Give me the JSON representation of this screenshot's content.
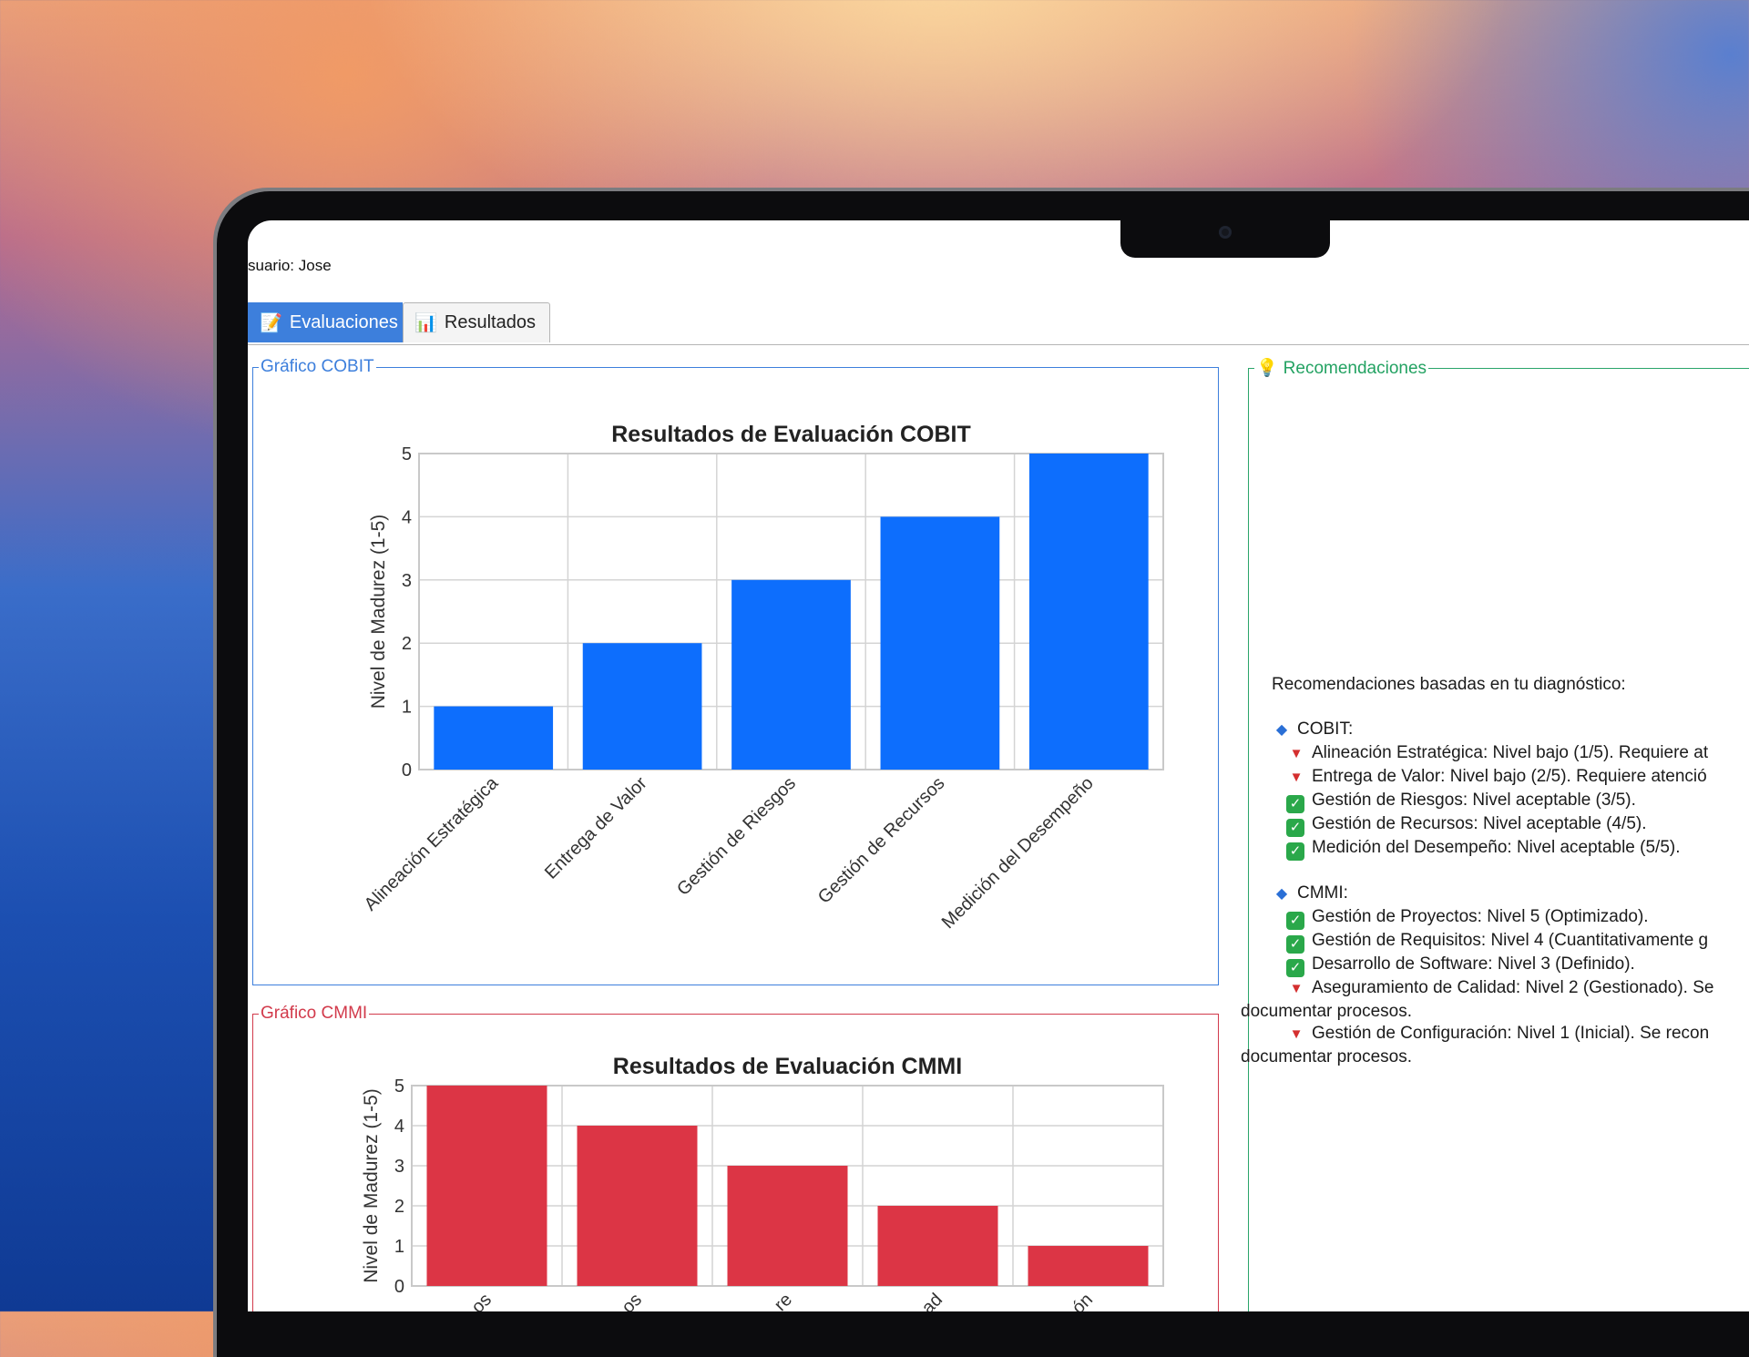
{
  "header": {
    "user_label": "suario: Jose"
  },
  "tabs": [
    {
      "label": "Evaluaciones",
      "icon": "notepad-pencil-icon",
      "active": true
    },
    {
      "label": "Resultados",
      "icon": "bar-chart-icon",
      "active": false
    }
  ],
  "groups": {
    "cobit_title": "Gráfico COBIT",
    "cmmi_title": "Gráfico CMMI",
    "rec_title": "Recomendaciones"
  },
  "colors": {
    "cobit": "#0d6efd",
    "cmmi": "#dc3545",
    "cobit_frame": "#3d7fdc",
    "cmmi_frame": "#d23a4b",
    "rec_frame": "#2aa56a"
  },
  "chart_data": [
    {
      "type": "bar",
      "title": "Resultados de Evaluación COBIT",
      "ylabel": "Nivel de Madurez (1-5)",
      "xlabel": "",
      "categories": [
        "Alineación Estratégica",
        "Entrega de Valor",
        "Gestión de Riesgos",
        "Gestión de Recursos",
        "Medición del Desempeño"
      ],
      "values": [
        1,
        2,
        3,
        4,
        5
      ],
      "ylim": [
        0,
        5
      ],
      "yticks": [
        "0",
        "1",
        "2",
        "3",
        "4",
        "5"
      ],
      "grid": true
    },
    {
      "type": "bar",
      "title": "Resultados de Evaluación CMMI",
      "ylabel": "Nivel de Madurez (1-5)",
      "xlabel": "",
      "categories": [
        "…os",
        "…os",
        "…re",
        "…ad",
        "…ón"
      ],
      "values": [
        5,
        4,
        3,
        2,
        1
      ],
      "ylim": [
        0,
        5
      ],
      "yticks": [
        "0",
        "1",
        "2",
        "3",
        "4",
        "5"
      ],
      "grid": true
    }
  ],
  "recommendations": {
    "intro": "Recomendaciones basadas en tu diagnóstico:",
    "cobit_header": "COBIT:",
    "cobit_items": [
      {
        "status": "down",
        "text": "Alineación Estratégica: Nivel bajo (1/5). Requiere at"
      },
      {
        "status": "down",
        "text": "Entrega de Valor: Nivel bajo (2/5). Requiere atenció"
      },
      {
        "status": "ok",
        "text": "Gestión de Riesgos: Nivel aceptable (3/5)."
      },
      {
        "status": "ok",
        "text": "Gestión de Recursos: Nivel aceptable (4/5)."
      },
      {
        "status": "ok",
        "text": "Medición del Desempeño: Nivel aceptable (5/5)."
      }
    ],
    "cmmi_header": "CMMI:",
    "cmmi_items": [
      {
        "status": "ok",
        "text": "Gestión de Proyectos: Nivel 5 (Optimizado)."
      },
      {
        "status": "ok",
        "text": "Gestión de Requisitos: Nivel 4 (Cuantitativamente g"
      },
      {
        "status": "ok",
        "text": "Desarrollo de Software: Nivel 3 (Definido)."
      },
      {
        "status": "down",
        "text": "Aseguramiento de Calidad: Nivel 2 (Gestionado). Se",
        "continuation": "documentar procesos."
      },
      {
        "status": "down",
        "text": "Gestión de Configuración: Nivel 1 (Inicial). Se recon",
        "continuation": "documentar procesos."
      }
    ]
  }
}
